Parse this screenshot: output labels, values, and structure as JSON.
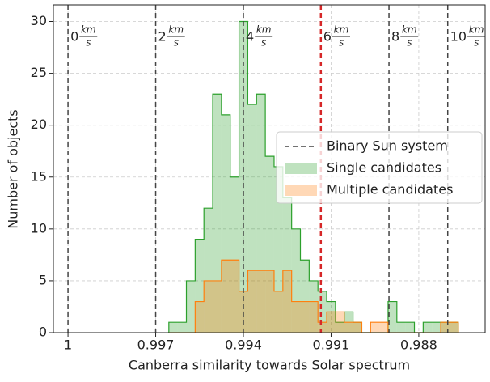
{
  "chart_data": {
    "type": "histogram",
    "xlabel": "Canberra similarity towards Solar spectrum",
    "ylabel": "Number of objects",
    "bins": [
      0.99655,
      0.99625,
      0.99595,
      0.99565,
      0.99535,
      0.99505,
      0.99475,
      0.99445,
      0.99415,
      0.99385,
      0.99355,
      0.99325,
      0.99295,
      0.99265,
      0.99235,
      0.99205,
      0.99175,
      0.99145,
      0.99115,
      0.99085,
      0.99055,
      0.99025,
      0.98995,
      0.98965,
      0.98935,
      0.98905,
      0.98875,
      0.98845,
      0.98815,
      0.98785,
      0.98755,
      0.98725,
      0.98695,
      0.98665
    ],
    "series": [
      {
        "name": "Single candidates",
        "color": "#2ca02c",
        "values": [
          1,
          1,
          5,
          9,
          12,
          23,
          21,
          15,
          30,
          22,
          23,
          17,
          16,
          13,
          10,
          7,
          5,
          4,
          3,
          1,
          2,
          1,
          0,
          0,
          0,
          3,
          1,
          1,
          0,
          1,
          1,
          1,
          1
        ]
      },
      {
        "name": "Multiple candidates",
        "color": "#ff7f0e",
        "values": [
          0,
          0,
          0,
          3,
          5,
          5,
          7,
          7,
          4,
          6,
          6,
          6,
          4,
          6,
          3,
          3,
          3,
          1,
          2,
          2,
          1,
          1,
          0,
          1,
          1,
          0,
          0,
          0,
          0,
          0,
          0,
          1,
          1
        ]
      }
    ],
    "vline_legend": "Binary Sun system",
    "vlines": [
      {
        "x": 1,
        "speed": "0",
        "unit_top": "km",
        "unit_bottom": "s",
        "color": "#444444"
      },
      {
        "x": 0.997,
        "speed": "2",
        "unit_top": "km",
        "unit_bottom": "s",
        "color": "#444444"
      },
      {
        "x": 0.994,
        "speed": "4",
        "unit_top": "km",
        "unit_bottom": "s",
        "color": "#444444"
      },
      {
        "x": 0.99135,
        "speed": "6",
        "unit_top": "km",
        "unit_bottom": "s",
        "color": "#d62728"
      },
      {
        "x": 0.98902,
        "speed": "8",
        "unit_top": "km",
        "unit_bottom": "s",
        "color": "#444444"
      },
      {
        "x": 0.98701,
        "speed": "10",
        "unit_top": "km",
        "unit_bottom": "s",
        "color": "#444444"
      }
    ],
    "xlim": [
      1.0005,
      0.98573
    ],
    "ylim": [
      0,
      31.6
    ],
    "xticks": [
      1,
      0.997,
      0.994,
      0.991,
      0.988
    ],
    "yticks": [
      0,
      5,
      10,
      15,
      20,
      25,
      30
    ],
    "grid": true,
    "legend": "center right"
  }
}
